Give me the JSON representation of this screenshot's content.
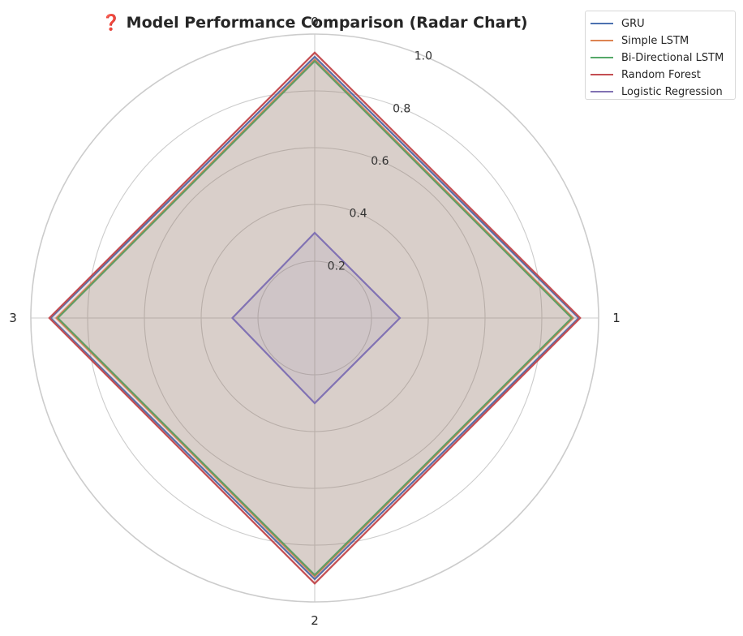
{
  "chart_data": {
    "type": "radar",
    "title": "❓ Model Performance Comparison (Radar Chart)",
    "axes": [
      "0",
      "1",
      "2",
      "3"
    ],
    "rticks": [
      "0.2",
      "0.4",
      "0.6",
      "0.8",
      "1.0"
    ],
    "rlim": [
      0,
      1.0
    ],
    "grid": true,
    "legend_position": "top-right",
    "series": [
      {
        "name": "GRU",
        "values": [
          0.92,
          0.93,
          0.92,
          0.93
        ],
        "color": "#4c72b0"
      },
      {
        "name": "Simple LSTM",
        "values": [
          0.91,
          0.91,
          0.91,
          0.91
        ],
        "color": "#dd8452"
      },
      {
        "name": "Bi-Directional LSTM",
        "values": [
          0.905,
          0.905,
          0.905,
          0.905
        ],
        "color": "#55a868"
      },
      {
        "name": "Random Forest",
        "values": [
          0.935,
          0.935,
          0.935,
          0.935
        ],
        "color": "#c44e52"
      },
      {
        "name": "Logistic Regression",
        "values": [
          0.3,
          0.3,
          0.3,
          0.29
        ],
        "color": "#8172b3"
      }
    ]
  }
}
